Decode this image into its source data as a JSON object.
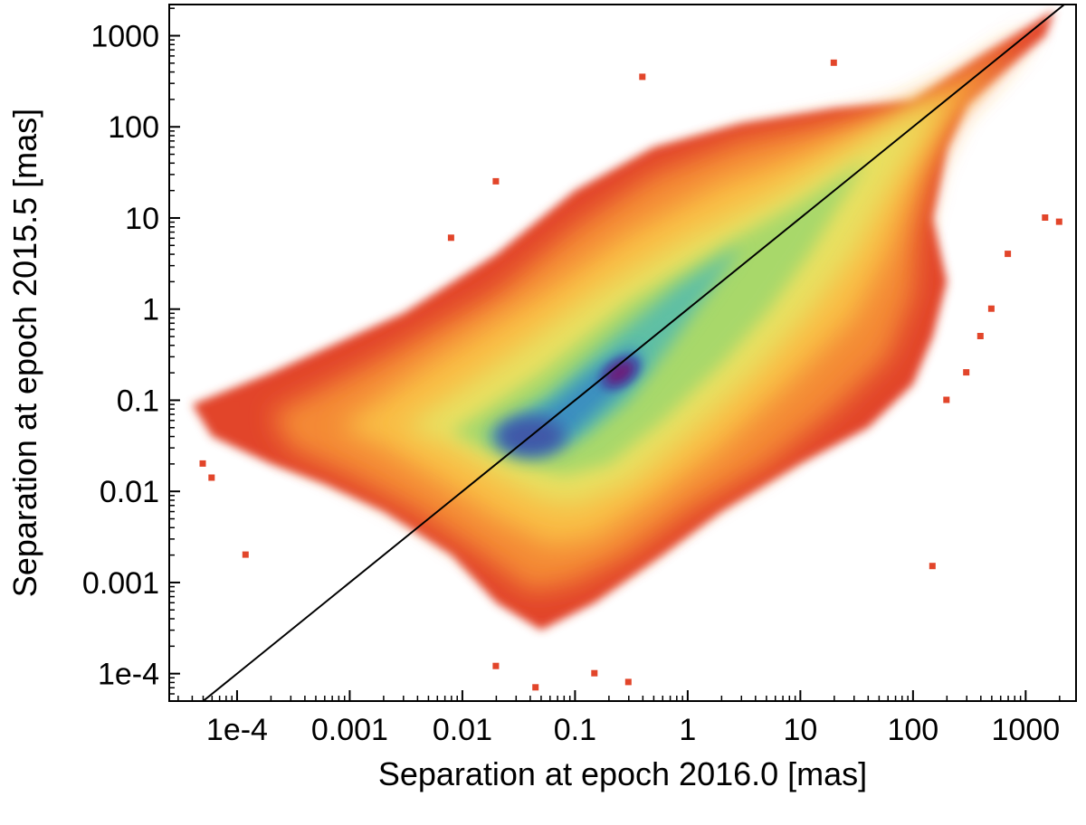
{
  "chart_data": {
    "type": "heatmap",
    "title": "",
    "xlabel": "Separation at epoch 2016.0 [mas]",
    "ylabel": "Separation at epoch 2015.5 [mas]",
    "xscale": "log",
    "yscale": "log",
    "xlim": [
      2.5e-05,
      2800
    ],
    "ylim": [
      5e-05,
      2200
    ],
    "x_ticks": [
      {
        "value": 0.0001,
        "label": "1e-4"
      },
      {
        "value": 0.001,
        "label": "0.001"
      },
      {
        "value": 0.01,
        "label": "0.01"
      },
      {
        "value": 0.1,
        "label": "0.1"
      },
      {
        "value": 1,
        "label": "1"
      },
      {
        "value": 10,
        "label": "10"
      },
      {
        "value": 100,
        "label": "100"
      },
      {
        "value": 1000,
        "label": "1000"
      }
    ],
    "y_ticks": [
      {
        "value": 0.0001,
        "label": "1e-4"
      },
      {
        "value": 0.001,
        "label": "0.001"
      },
      {
        "value": 0.01,
        "label": "0.01"
      },
      {
        "value": 0.1,
        "label": "0.1"
      },
      {
        "value": 1,
        "label": "1"
      },
      {
        "value": 10,
        "label": "10"
      },
      {
        "value": 100,
        "label": "100"
      },
      {
        "value": 1000,
        "label": "1000"
      }
    ],
    "reference_line": {
      "name": "y = x",
      "x": [
        2.5e-05,
        2200
      ],
      "y": [
        2.5e-05,
        2200
      ]
    },
    "density": {
      "colormap": [
        "#6b1f7a",
        "#3f58a8",
        "#3a8fc0",
        "#5fbfa4",
        "#a8d86a",
        "#e8e060",
        "#f9bd45",
        "#f48a36",
        "#e2452a"
      ],
      "peak": {
        "x": 0.25,
        "y": 0.2
      },
      "secondary_peak": {
        "x": 0.04,
        "y": 0.04
      },
      "diagonal_ridge": [
        [
          0.3,
          0.3
        ],
        [
          3,
          3
        ],
        [
          30,
          30
        ],
        [
          300,
          300
        ],
        [
          1500,
          1500
        ]
      ],
      "horizontal_arm": [
        [
          0.0003,
          0.04
        ],
        [
          0.01,
          0.04
        ],
        [
          0.04,
          0.04
        ]
      ],
      "vertical_arm": [
        [
          0.05,
          0.0005
        ],
        [
          0.05,
          0.005
        ],
        [
          0.05,
          0.04
        ]
      ],
      "outlier_points": [
        [
          5e-05,
          0.02
        ],
        [
          6e-05,
          0.014
        ],
        [
          0.00012,
          0.002
        ],
        [
          0.0001,
          0.09
        ],
        [
          0.008,
          6
        ],
        [
          0.02,
          25
        ],
        [
          0.4,
          350
        ],
        [
          20,
          500
        ],
        [
          2000,
          9
        ],
        [
          1500,
          10
        ],
        [
          0.045,
          7e-05
        ],
        [
          0.3,
          8e-05
        ],
        [
          0.02,
          0.00012
        ],
        [
          0.15,
          0.0001
        ],
        [
          400,
          0.5
        ],
        [
          300,
          0.2
        ],
        [
          200,
          0.1
        ],
        [
          150,
          0.0015
        ],
        [
          500,
          1
        ],
        [
          700,
          4
        ]
      ]
    }
  }
}
